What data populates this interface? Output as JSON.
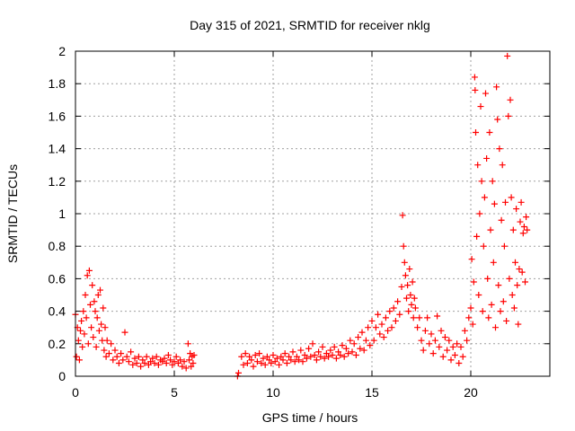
{
  "chart_data": {
    "type": "scatter",
    "title": "Day 315 of 2021, SRMTID for receiver nklg",
    "xlabel": "GPS time / hours",
    "ylabel": "SRMTID / TECUs",
    "xlim": [
      0,
      24
    ],
    "ylim": [
      0,
      2
    ],
    "xticks": [
      0,
      5,
      10,
      15,
      20
    ],
    "yticks": [
      0,
      0.2,
      0.4,
      0.6,
      0.8,
      1,
      1.2,
      1.4,
      1.6,
      1.8,
      2
    ],
    "xtick_labels": [
      "0",
      "5",
      "10",
      "15",
      "20"
    ],
    "ytick_labels": [
      "0",
      "0.2",
      "0.4",
      "0.6",
      "0.8",
      "1",
      "1.2",
      "1.4",
      "1.6",
      "1.8",
      "2"
    ],
    "grid": true,
    "marker": "+",
    "color": "#ff0000",
    "series": [
      {
        "name": "SRMTID",
        "points": [
          [
            0.0,
            0.38
          ],
          [
            0.05,
            0.12
          ],
          [
            0.1,
            0.3
          ],
          [
            0.15,
            0.22
          ],
          [
            0.2,
            0.1
          ],
          [
            0.25,
            0.28
          ],
          [
            0.3,
            0.34
          ],
          [
            0.35,
            0.18
          ],
          [
            0.4,
            0.4
          ],
          [
            0.45,
            0.26
          ],
          [
            0.5,
            0.5
          ],
          [
            0.55,
            0.36
          ],
          [
            0.6,
            0.62
          ],
          [
            0.65,
            0.2
          ],
          [
            0.7,
            0.65
          ],
          [
            0.75,
            0.44
          ],
          [
            0.8,
            0.3
          ],
          [
            0.85,
            0.56
          ],
          [
            0.9,
            0.24
          ],
          [
            0.95,
            0.46
          ],
          [
            1.0,
            0.4
          ],
          [
            1.05,
            0.18
          ],
          [
            1.1,
            0.36
          ],
          [
            1.15,
            0.5
          ],
          [
            1.2,
            0.28
          ],
          [
            1.25,
            0.53
          ],
          [
            1.3,
            0.32
          ],
          [
            1.35,
            0.22
          ],
          [
            1.4,
            0.42
          ],
          [
            1.45,
            0.16
          ],
          [
            1.5,
            0.3
          ],
          [
            1.55,
            0.12
          ],
          [
            1.6,
            0.22
          ],
          [
            1.7,
            0.14
          ],
          [
            1.8,
            0.2
          ],
          [
            1.9,
            0.1
          ],
          [
            2.0,
            0.16
          ],
          [
            2.1,
            0.12
          ],
          [
            2.2,
            0.08
          ],
          [
            2.3,
            0.14
          ],
          [
            2.4,
            0.1
          ],
          [
            2.5,
            0.27
          ],
          [
            2.6,
            0.12
          ],
          [
            2.7,
            0.09
          ],
          [
            2.8,
            0.15
          ],
          [
            2.9,
            0.07
          ],
          [
            3.0,
            0.11
          ],
          [
            3.1,
            0.08
          ],
          [
            3.2,
            0.12
          ],
          [
            3.3,
            0.06
          ],
          [
            3.4,
            0.1
          ],
          [
            3.5,
            0.08
          ],
          [
            3.6,
            0.12
          ],
          [
            3.7,
            0.07
          ],
          [
            3.8,
            0.09
          ],
          [
            3.9,
            0.11
          ],
          [
            4.0,
            0.08
          ],
          [
            4.1,
            0.12
          ],
          [
            4.2,
            0.07
          ],
          [
            4.3,
            0.1
          ],
          [
            4.4,
            0.09
          ],
          [
            4.5,
            0.11
          ],
          [
            4.6,
            0.08
          ],
          [
            4.7,
            0.13
          ],
          [
            4.8,
            0.1
          ],
          [
            4.9,
            0.07
          ],
          [
            5.0,
            0.09
          ],
          [
            5.1,
            0.12
          ],
          [
            5.2,
            0.08
          ],
          [
            5.3,
            0.1
          ],
          [
            5.4,
            0.06
          ],
          [
            5.5,
            0.09
          ],
          [
            5.6,
            0.05
          ],
          [
            5.7,
            0.2
          ],
          [
            5.75,
            0.1
          ],
          [
            5.8,
            0.14
          ],
          [
            5.85,
            0.06
          ],
          [
            5.9,
            0.12
          ],
          [
            5.95,
            0.08
          ],
          [
            6.0,
            0.13
          ],
          [
            8.2,
            0.0
          ],
          [
            8.25,
            0.02
          ],
          [
            8.4,
            0.12
          ],
          [
            8.5,
            0.07
          ],
          [
            8.6,
            0.14
          ],
          [
            8.7,
            0.08
          ],
          [
            8.8,
            0.12
          ],
          [
            8.9,
            0.1
          ],
          [
            9.0,
            0.06
          ],
          [
            9.1,
            0.13
          ],
          [
            9.2,
            0.09
          ],
          [
            9.3,
            0.14
          ],
          [
            9.4,
            0.08
          ],
          [
            9.5,
            0.11
          ],
          [
            9.6,
            0.07
          ],
          [
            9.7,
            0.12
          ],
          [
            9.8,
            0.1
          ],
          [
            9.9,
            0.08
          ],
          [
            10.0,
            0.13
          ],
          [
            10.1,
            0.09
          ],
          [
            10.2,
            0.11
          ],
          [
            10.3,
            0.07
          ],
          [
            10.4,
            0.12
          ],
          [
            10.5,
            0.1
          ],
          [
            10.6,
            0.14
          ],
          [
            10.7,
            0.08
          ],
          [
            10.8,
            0.12
          ],
          [
            10.9,
            0.1
          ],
          [
            11.0,
            0.15
          ],
          [
            11.1,
            0.09
          ],
          [
            11.2,
            0.12
          ],
          [
            11.3,
            0.1
          ],
          [
            11.4,
            0.16
          ],
          [
            11.5,
            0.09
          ],
          [
            11.6,
            0.13
          ],
          [
            11.7,
            0.11
          ],
          [
            11.8,
            0.17
          ],
          [
            11.9,
            0.12
          ],
          [
            12.0,
            0.2
          ],
          [
            12.1,
            0.13
          ],
          [
            12.2,
            0.1
          ],
          [
            12.3,
            0.15
          ],
          [
            12.4,
            0.12
          ],
          [
            12.5,
            0.18
          ],
          [
            12.6,
            0.11
          ],
          [
            12.7,
            0.14
          ],
          [
            12.8,
            0.12
          ],
          [
            12.9,
            0.16
          ],
          [
            13.0,
            0.13
          ],
          [
            13.1,
            0.18
          ],
          [
            13.2,
            0.11
          ],
          [
            13.3,
            0.15
          ],
          [
            13.4,
            0.13
          ],
          [
            13.5,
            0.19
          ],
          [
            13.6,
            0.12
          ],
          [
            13.7,
            0.17
          ],
          [
            13.8,
            0.14
          ],
          [
            13.9,
            0.22
          ],
          [
            14.0,
            0.15
          ],
          [
            14.1,
            0.2
          ],
          [
            14.2,
            0.13
          ],
          [
            14.3,
            0.24
          ],
          [
            14.4,
            0.17
          ],
          [
            14.5,
            0.27
          ],
          [
            14.6,
            0.16
          ],
          [
            14.7,
            0.22
          ],
          [
            14.8,
            0.3
          ],
          [
            14.9,
            0.19
          ],
          [
            15.0,
            0.34
          ],
          [
            15.1,
            0.22
          ],
          [
            15.2,
            0.3
          ],
          [
            15.3,
            0.38
          ],
          [
            15.4,
            0.26
          ],
          [
            15.5,
            0.32
          ],
          [
            15.6,
            0.24
          ],
          [
            15.7,
            0.36
          ],
          [
            15.8,
            0.28
          ],
          [
            15.9,
            0.4
          ],
          [
            16.0,
            0.3
          ],
          [
            16.1,
            0.42
          ],
          [
            16.2,
            0.34
          ],
          [
            16.3,
            0.46
          ],
          [
            16.4,
            0.38
          ],
          [
            16.5,
            0.55
          ],
          [
            16.55,
            0.99
          ],
          [
            16.6,
            0.8
          ],
          [
            16.65,
            0.7
          ],
          [
            16.7,
            0.62
          ],
          [
            16.75,
            0.48
          ],
          [
            16.8,
            0.56
          ],
          [
            16.85,
            0.4
          ],
          [
            16.9,
            0.66
          ],
          [
            16.95,
            0.5
          ],
          [
            17.0,
            0.44
          ],
          [
            17.05,
            0.58
          ],
          [
            17.1,
            0.36
          ],
          [
            17.15,
            0.48
          ],
          [
            17.2,
            0.42
          ],
          [
            17.3,
            0.3
          ],
          [
            17.4,
            0.36
          ],
          [
            17.5,
            0.22
          ],
          [
            17.6,
            0.16
          ],
          [
            17.7,
            0.28
          ],
          [
            17.8,
            0.36
          ],
          [
            17.9,
            0.2
          ],
          [
            18.0,
            0.26
          ],
          [
            18.1,
            0.14
          ],
          [
            18.2,
            0.22
          ],
          [
            18.3,
            0.37
          ],
          [
            18.4,
            0.18
          ],
          [
            18.5,
            0.28
          ],
          [
            18.6,
            0.12
          ],
          [
            18.7,
            0.24
          ],
          [
            18.8,
            0.16
          ],
          [
            18.9,
            0.22
          ],
          [
            19.0,
            0.1
          ],
          [
            19.1,
            0.18
          ],
          [
            19.2,
            0.13
          ],
          [
            19.3,
            0.2
          ],
          [
            19.4,
            0.08
          ],
          [
            19.5,
            0.18
          ],
          [
            19.6,
            0.12
          ],
          [
            19.7,
            0.28
          ],
          [
            19.8,
            0.22
          ],
          [
            19.9,
            0.36
          ],
          [
            20.0,
            0.42
          ],
          [
            20.05,
            0.72
          ],
          [
            20.1,
            0.32
          ],
          [
            20.15,
            0.58
          ],
          [
            20.2,
            1.84
          ],
          [
            20.22,
            1.76
          ],
          [
            20.25,
            1.5
          ],
          [
            20.3,
            0.86
          ],
          [
            20.35,
            1.3
          ],
          [
            20.4,
            0.5
          ],
          [
            20.45,
            1.0
          ],
          [
            20.5,
            1.66
          ],
          [
            20.55,
            1.2
          ],
          [
            20.6,
            0.4
          ],
          [
            20.65,
            0.8
          ],
          [
            20.7,
            1.1
          ],
          [
            20.75,
            1.74
          ],
          [
            20.8,
            1.34
          ],
          [
            20.85,
            0.6
          ],
          [
            20.9,
            0.36
          ],
          [
            20.95,
            1.5
          ],
          [
            21.0,
            0.9
          ],
          [
            21.05,
            0.44
          ],
          [
            21.1,
            1.2
          ],
          [
            21.15,
            0.7
          ],
          [
            21.2,
            1.06
          ],
          [
            21.25,
            0.3
          ],
          [
            21.3,
            1.78
          ],
          [
            21.35,
            1.58
          ],
          [
            21.4,
            0.56
          ],
          [
            21.45,
            1.4
          ],
          [
            21.5,
            0.4
          ],
          [
            21.55,
            0.96
          ],
          [
            21.6,
            1.3
          ],
          [
            21.65,
            0.46
          ],
          [
            21.7,
            0.8
          ],
          [
            21.75,
            1.07
          ],
          [
            21.8,
            0.34
          ],
          [
            21.85,
            1.97
          ],
          [
            21.9,
            1.6
          ],
          [
            21.95,
            0.6
          ],
          [
            22.0,
            1.7
          ],
          [
            22.05,
            1.1
          ],
          [
            22.1,
            0.5
          ],
          [
            22.15,
            0.9
          ],
          [
            22.2,
            0.42
          ],
          [
            22.25,
            0.7
          ],
          [
            22.3,
            1.03
          ],
          [
            22.35,
            0.56
          ],
          [
            22.4,
            0.32
          ],
          [
            22.45,
            0.66
          ],
          [
            22.5,
            0.95
          ],
          [
            22.55,
            1.07
          ],
          [
            22.6,
            0.64
          ],
          [
            22.65,
            0.88
          ],
          [
            22.7,
            0.92
          ],
          [
            22.75,
            0.58
          ],
          [
            22.8,
            0.98
          ],
          [
            22.85,
            0.9
          ]
        ]
      }
    ]
  }
}
